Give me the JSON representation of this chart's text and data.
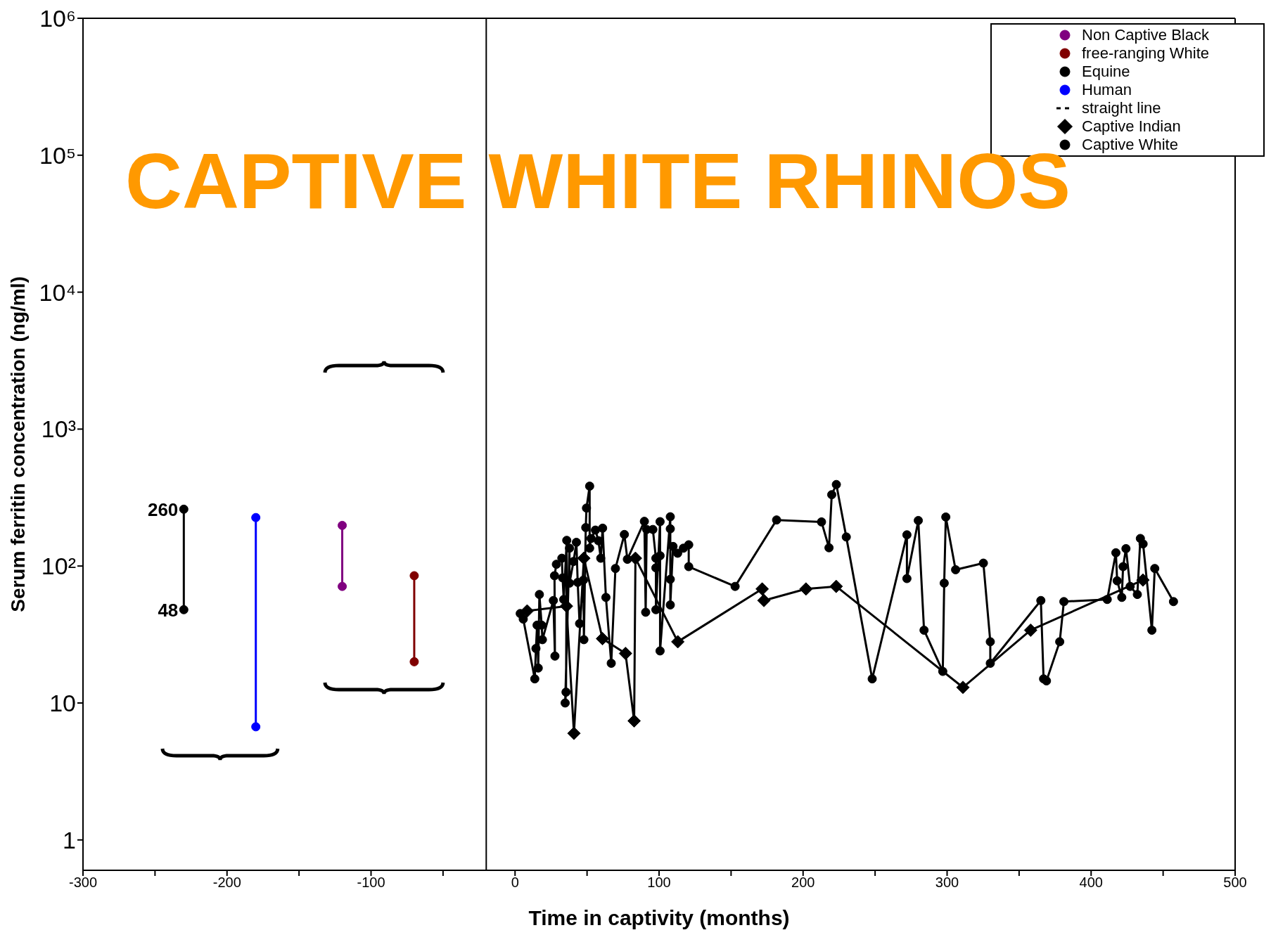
{
  "chart_data": {
    "type": "line",
    "xlabel": "Time in captivity (months)",
    "ylabel": "Serum ferritin concentration (ng/ml)",
    "annotations": [
      "CAPTIVE WHITE RHINOS"
    ],
    "log": "y",
    "xlim": [
      -300,
      500
    ],
    "xticks": [
      -300,
      {
        "value": -250,
        "label": null
      },
      -200,
      {
        "value": -150,
        "label": null
      },
      -100,
      {
        "value": -50,
        "label": null
      },
      0,
      {
        "value": 50,
        "label": null
      },
      100,
      {
        "value": 150,
        "label": null
      },
      200,
      {
        "value": 250,
        "label": null
      },
      300,
      {
        "value": 350,
        "label": null
      },
      400,
      {
        "value": 450,
        "label": null
      },
      500
    ],
    "ylim": [
      0.6,
      1000000
    ],
    "yticks": [
      1,
      10,
      {
        "value": 100,
        "label": "10²"
      },
      {
        "value": 1000,
        "label": "10³"
      },
      {
        "value": 10000,
        "label": "10⁴"
      },
      {
        "value": 100000,
        "label": "10⁵"
      },
      {
        "value": 1000000,
        "label": "10⁶"
      }
    ],
    "grid": false,
    "legend": "top right",
    "ref_lines": [
      {
        "axis": "x",
        "value": -20,
        "color": "#000000"
      }
    ],
    "series": [
      {
        "name": "Non Captive Black",
        "color": "#800080",
        "marker": "circle",
        "x": [
          -120,
          -120
        ],
        "values": [
          198,
          71
        ]
      },
      {
        "name": "free-ranging White",
        "color": "#800000",
        "marker": "circle",
        "x": [
          -70,
          -70
        ],
        "values": [
          85,
          20
        ]
      },
      {
        "name": "Equine",
        "color": "#000000",
        "marker": "circle",
        "x": [
          -230,
          -230
        ],
        "values": [
          260,
          48
        ],
        "value_labels": [
          "260",
          "48"
        ]
      },
      {
        "name": "Human",
        "color": "#0000ff",
        "marker": "circle",
        "x": [
          -180,
          -180
        ],
        "values": [
          226,
          6.7
        ]
      },
      {
        "name": "straight line",
        "color": "#000000",
        "marker": "none",
        "line_style": "dashed"
      },
      {
        "name": "Captive Indian",
        "color": "#000000",
        "marker": "diamond",
        "x": [
          8.4,
          35.7,
          40.9,
          47.8,
          60.7,
          76.7,
          82.7,
          83.6,
          113,
          171.6,
          172.8,
          202,
          223,
          311,
          358,
          436
        ],
        "values": [
          47,
          51,
          6,
          114,
          29.5,
          23,
          7.4,
          114,
          28,
          68,
          56,
          68,
          71,
          13,
          34,
          79
        ]
      },
      {
        "name": "Captive White",
        "color": "#000000",
        "marker": "circle",
        "x": [
          3.6,
          5.7,
          13.7,
          14.5,
          15.3,
          16.1,
          16.9,
          18.5,
          19,
          26.6,
          27.7,
          27.4,
          28.7,
          32.5,
          33,
          33.8,
          35.9,
          35.4,
          34.8,
          37.8,
          37.8,
          40.6,
          42.6,
          43.5,
          44.8,
          47.5,
          47.8,
          49.1,
          49.6,
          51.8,
          51.8,
          52.8,
          55.8,
          57.9,
          59.5,
          60.8,
          63.1,
          66.8,
          69.7,
          75.9,
          78,
          89.8,
          90.7,
          91.4,
          95.7,
          97.8,
          97.8,
          97.8,
          100.7,
          100.7,
          100.7,
          107.8,
          107.8,
          107.8,
          107.8,
          109.7,
          112.9,
          116.9,
          120.6,
          120.6,
          152.8,
          181.6,
          212.8,
          218,
          219.9,
          223.1,
          230,
          248,
          272.1,
          272.1,
          280,
          284,
          297,
          298,
          299.1,
          305.9,
          325.2,
          330,
          330,
          365.1,
          367,
          369,
          378.2,
          381.1,
          411.2,
          417.2,
          418.1,
          421.3,
          422.2,
          424.2,
          427.1,
          432.1,
          434.2,
          436.1,
          442.2,
          444.2,
          457.2
        ],
        "values": [
          45,
          41,
          15,
          25,
          37,
          18,
          62,
          37,
          29,
          56,
          22,
          85,
          103,
          114,
          82,
          57,
          154,
          12,
          10,
          135,
          75,
          108,
          149,
          76,
          38,
          79,
          29,
          191,
          265,
          383,
          135,
          159,
          183,
          153,
          114,
          189,
          59,
          19.5,
          96,
          170,
          112,
          212,
          46,
          185,
          185,
          114,
          97,
          48,
          211,
          119,
          24,
          229,
          187,
          80,
          52,
          139,
          124,
          135,
          143,
          99,
          71,
          217,
          210,
          136,
          332,
          394,
          163,
          15,
          169,
          81,
          215,
          34,
          17,
          75,
          228,
          94,
          105,
          28,
          19.5,
          56,
          15,
          14.5,
          28,
          55,
          57,
          125,
          78,
          59,
          99,
          134,
          71,
          62,
          159,
          145,
          34,
          96,
          55
        ]
      }
    ]
  }
}
